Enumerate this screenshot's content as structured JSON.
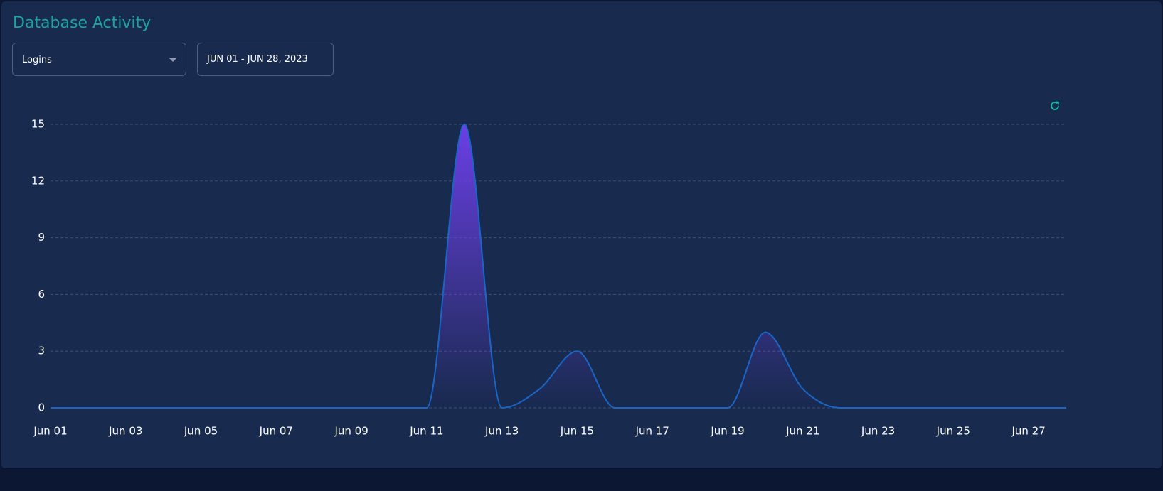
{
  "header": {
    "title": "Database Activity"
  },
  "controls": {
    "metric": "Logins",
    "date_range": "JUN 01 - JUN 28, 2023"
  },
  "chart_data": {
    "type": "area",
    "categories": [
      "Jun 01",
      null,
      "Jun 03",
      null,
      "Jun 05",
      null,
      "Jun 07",
      null,
      "Jun 09",
      null,
      "Jun 11",
      null,
      "Jun 13",
      null,
      "Jun 15",
      null,
      "Jun 17",
      null,
      "Jun 19",
      null,
      "Jun 21",
      null,
      "Jun 23",
      null,
      "Jun 25",
      null,
      "Jun 27",
      null
    ],
    "series": [
      {
        "name": "Logins",
        "color": "#1a66c8",
        "values": [
          0,
          0,
          0,
          0,
          0,
          0,
          0,
          0,
          0,
          0,
          0,
          15,
          0,
          1,
          3,
          0,
          0,
          0,
          0,
          4,
          1,
          0,
          0,
          0,
          0,
          0,
          0,
          0
        ]
      }
    ],
    "ylim": [
      0,
      15
    ],
    "yticks": [
      0,
      3,
      6,
      9,
      12,
      15
    ],
    "grid": true,
    "fill_top_color": "#6b3fe6"
  }
}
